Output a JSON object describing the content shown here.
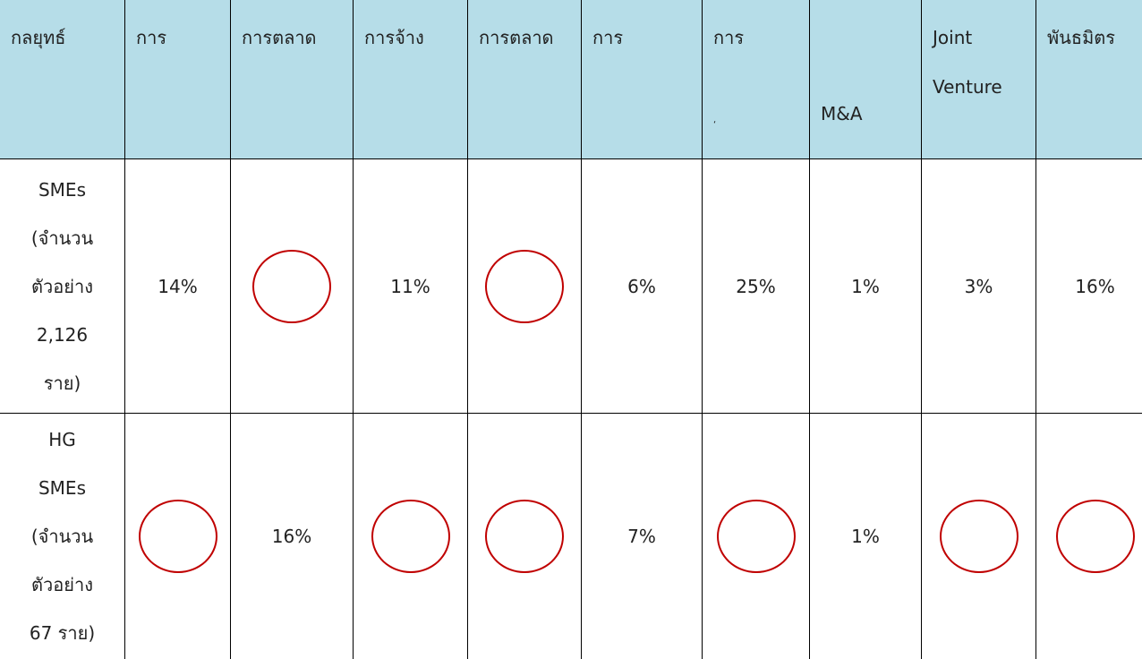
{
  "table": {
    "header": [
      [
        "กลยุทธ์"
      ],
      [
        "การ"
      ],
      [
        "การตลาด"
      ],
      [
        "การจ้าง"
      ],
      [
        "การตลาด"
      ],
      [
        "การ"
      ],
      [
        "การ",
        "‘"
      ],
      [
        "M&A"
      ],
      [
        "Joint",
        "Venture"
      ],
      [
        "พันธมิตร"
      ]
    ],
    "rows": [
      {
        "label": [
          "SMEs",
          "(จำนวน",
          "ตัวอย่าง",
          "2,126",
          "ราย)"
        ],
        "cells": [
          "14%",
          null,
          "11%",
          null,
          "6%",
          "25%",
          "1%",
          "3%",
          "16%"
        ]
      },
      {
        "label": [
          "HG",
          "SMEs",
          "(จำนวน",
          "ตัวอย่าง",
          "67 ราย)"
        ],
        "cells": [
          null,
          "16%",
          null,
          null,
          "7%",
          null,
          "1%",
          null,
          null
        ]
      }
    ]
  }
}
